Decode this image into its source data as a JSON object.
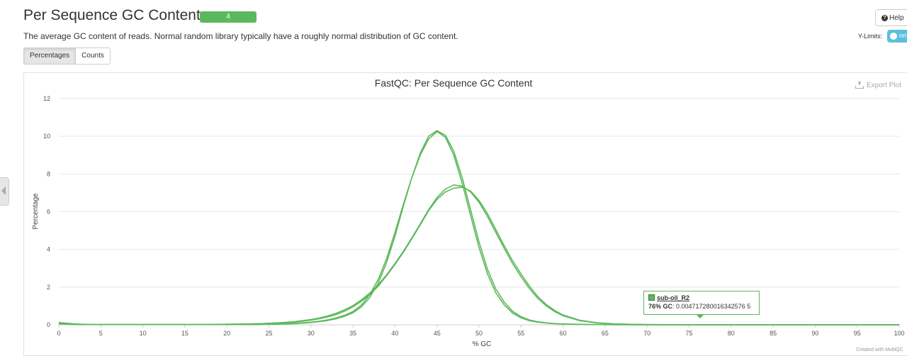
{
  "header": {
    "title": "Per Sequence GC Content",
    "status_count": "4",
    "status_color": "#5cb85c",
    "description": "The average GC content of reads. Normal random library typically have a roughly normal distribution of GC content.",
    "help_label": "Help",
    "ylimits_label": "Y-Limits:",
    "ylimits_toggle": "on"
  },
  "toggle_buttons": [
    "Percentages",
    "Counts"
  ],
  "export_label": "Export Plot",
  "credit": "Created with MultiQC",
  "tooltip": {
    "series": "sub-oil_R2",
    "x_label": "76% GC",
    "value": ": 0.004717280016342576 5"
  },
  "chart_data": {
    "type": "line",
    "title": "FastQC: Per Sequence GC Content",
    "xlabel": "% GC",
    "ylabel": "Percentage",
    "xlim": [
      0,
      100
    ],
    "ylim": [
      0,
      12
    ],
    "xticks": [
      "0",
      "5",
      "10",
      "15",
      "20",
      "25",
      "30",
      "35",
      "40",
      "45",
      "50",
      "55",
      "60",
      "65",
      "70",
      "75",
      "80",
      "85",
      "90",
      "95",
      "100"
    ],
    "yticks": [
      "0",
      "2",
      "4",
      "6",
      "8",
      "10",
      "12"
    ],
    "grid": true,
    "line_color": "#5cb85c",
    "x": [
      0,
      2,
      4,
      6,
      8,
      10,
      12,
      14,
      16,
      18,
      20,
      22,
      24,
      26,
      28,
      30,
      31,
      32,
      33,
      34,
      35,
      36,
      37,
      38,
      39,
      40,
      41,
      42,
      43,
      44,
      45,
      46,
      47,
      48,
      49,
      50,
      51,
      52,
      53,
      54,
      55,
      56,
      57,
      58,
      59,
      60,
      62,
      64,
      66,
      68,
      70,
      72,
      74,
      76,
      78,
      80,
      85,
      90,
      95,
      100
    ],
    "series": [
      {
        "values": [
          0.12,
          0.04,
          0.01,
          0.01,
          0.01,
          0.01,
          0.01,
          0.01,
          0.01,
          0.01,
          0.01,
          0.01,
          0.02,
          0.04,
          0.07,
          0.14,
          0.19,
          0.26,
          0.36,
          0.5,
          0.7,
          1.05,
          1.6,
          2.4,
          3.5,
          4.9,
          6.4,
          7.8,
          9.0,
          9.85,
          10.25,
          9.95,
          9.0,
          7.5,
          5.8,
          4.1,
          2.7,
          1.7,
          1.05,
          0.62,
          0.37,
          0.22,
          0.14,
          0.09,
          0.06,
          0.04,
          0.02,
          0.01,
          0.01,
          0.005,
          0.005,
          0.005,
          0.005,
          0.005,
          0.003,
          0.002,
          0.002,
          0.002,
          0.002,
          0.002
        ]
      },
      {
        "values": [
          0.11,
          0.04,
          0.01,
          0.01,
          0.01,
          0.01,
          0.01,
          0.01,
          0.01,
          0.01,
          0.01,
          0.01,
          0.02,
          0.04,
          0.06,
          0.12,
          0.17,
          0.23,
          0.32,
          0.45,
          0.64,
          0.95,
          1.45,
          2.2,
          3.3,
          4.7,
          6.3,
          7.8,
          9.1,
          10.0,
          10.3,
          10.05,
          9.2,
          7.8,
          6.1,
          4.4,
          2.95,
          1.9,
          1.2,
          0.72,
          0.43,
          0.26,
          0.16,
          0.1,
          0.065,
          0.045,
          0.025,
          0.012,
          0.008,
          0.006,
          0.005,
          0.005,
          0.005,
          0.005,
          0.003,
          0.002,
          0.002,
          0.002,
          0.002,
          0.002
        ]
      },
      {
        "values": [
          0.05,
          0.02,
          0.01,
          0.01,
          0.01,
          0.01,
          0.01,
          0.01,
          0.01,
          0.02,
          0.03,
          0.04,
          0.06,
          0.09,
          0.14,
          0.25,
          0.32,
          0.42,
          0.55,
          0.72,
          0.95,
          1.25,
          1.6,
          2.05,
          2.6,
          3.2,
          3.85,
          4.55,
          5.3,
          6.05,
          6.65,
          7.05,
          7.25,
          7.3,
          7.1,
          6.6,
          5.9,
          5.05,
          4.2,
          3.4,
          2.7,
          2.05,
          1.5,
          1.08,
          0.76,
          0.52,
          0.24,
          0.11,
          0.05,
          0.025,
          0.012,
          0.008,
          0.006,
          0.0047,
          0.003,
          0.002,
          0.002,
          0.002,
          0.002,
          0.002
        ]
      },
      {
        "values": [
          0.05,
          0.02,
          0.01,
          0.01,
          0.01,
          0.01,
          0.01,
          0.01,
          0.01,
          0.02,
          0.03,
          0.04,
          0.06,
          0.1,
          0.16,
          0.28,
          0.36,
          0.47,
          0.61,
          0.79,
          1.02,
          1.32,
          1.68,
          2.12,
          2.65,
          3.25,
          3.9,
          4.6,
          5.35,
          6.1,
          6.75,
          7.2,
          7.42,
          7.35,
          7.05,
          6.5,
          5.75,
          4.9,
          4.05,
          3.25,
          2.55,
          1.92,
          1.4,
          1.0,
          0.7,
          0.48,
          0.22,
          0.1,
          0.045,
          0.022,
          0.011,
          0.007,
          0.005,
          0.0047,
          0.003,
          0.002,
          0.002,
          0.002,
          0.002,
          0.002
        ]
      }
    ]
  }
}
